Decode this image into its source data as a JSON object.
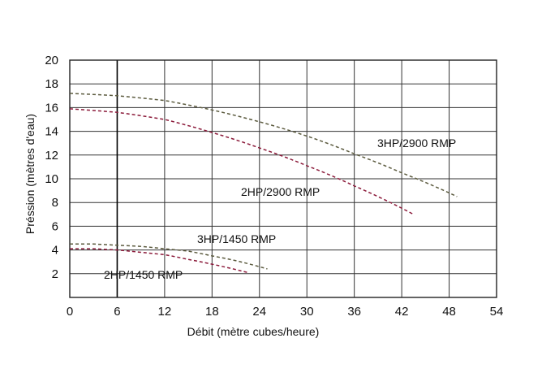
{
  "chart_data": {
    "type": "line",
    "xlabel": "Débit (mètre cubes/heure)",
    "ylabel": "Préssion (mètres d'eau)",
    "xlim": [
      0,
      54
    ],
    "ylim": [
      0,
      20
    ],
    "xticks": [
      0,
      6,
      12,
      18,
      24,
      30,
      36,
      42,
      48,
      54
    ],
    "yticks": [
      2,
      4,
      6,
      8,
      10,
      12,
      14,
      16,
      18,
      20
    ],
    "grid": true,
    "line_style": "dashed",
    "series": [
      {
        "name": "3HP/2900 RMP",
        "color": "#5b5a3e",
        "x": [
          0,
          6,
          12,
          18,
          24,
          30,
          36,
          42,
          49
        ],
        "y": [
          17.2,
          17.0,
          16.6,
          15.8,
          14.8,
          13.6,
          12.1,
          10.5,
          8.5
        ]
      },
      {
        "name": "2HP/2900 RMP",
        "color": "#8b1a3a",
        "x": [
          0,
          6,
          12,
          18,
          24,
          30,
          36,
          43.5
        ],
        "y": [
          15.9,
          15.6,
          15.0,
          13.9,
          12.6,
          11.1,
          9.4,
          7.0
        ]
      },
      {
        "name": "3HP/1450 RMP",
        "color": "#5b5a3e",
        "x": [
          0,
          3,
          6,
          9,
          12,
          15,
          18,
          21,
          25
        ],
        "y": [
          4.5,
          4.5,
          4.4,
          4.3,
          4.1,
          3.9,
          3.5,
          3.1,
          2.4
        ]
      },
      {
        "name": "2HP/1450 RMP",
        "color": "#8b1a3a",
        "x": [
          0,
          3,
          6,
          9,
          12,
          15,
          18,
          22.5
        ],
        "y": [
          4.1,
          4.1,
          4.0,
          3.8,
          3.6,
          3.2,
          2.8,
          2.1
        ]
      }
    ]
  }
}
